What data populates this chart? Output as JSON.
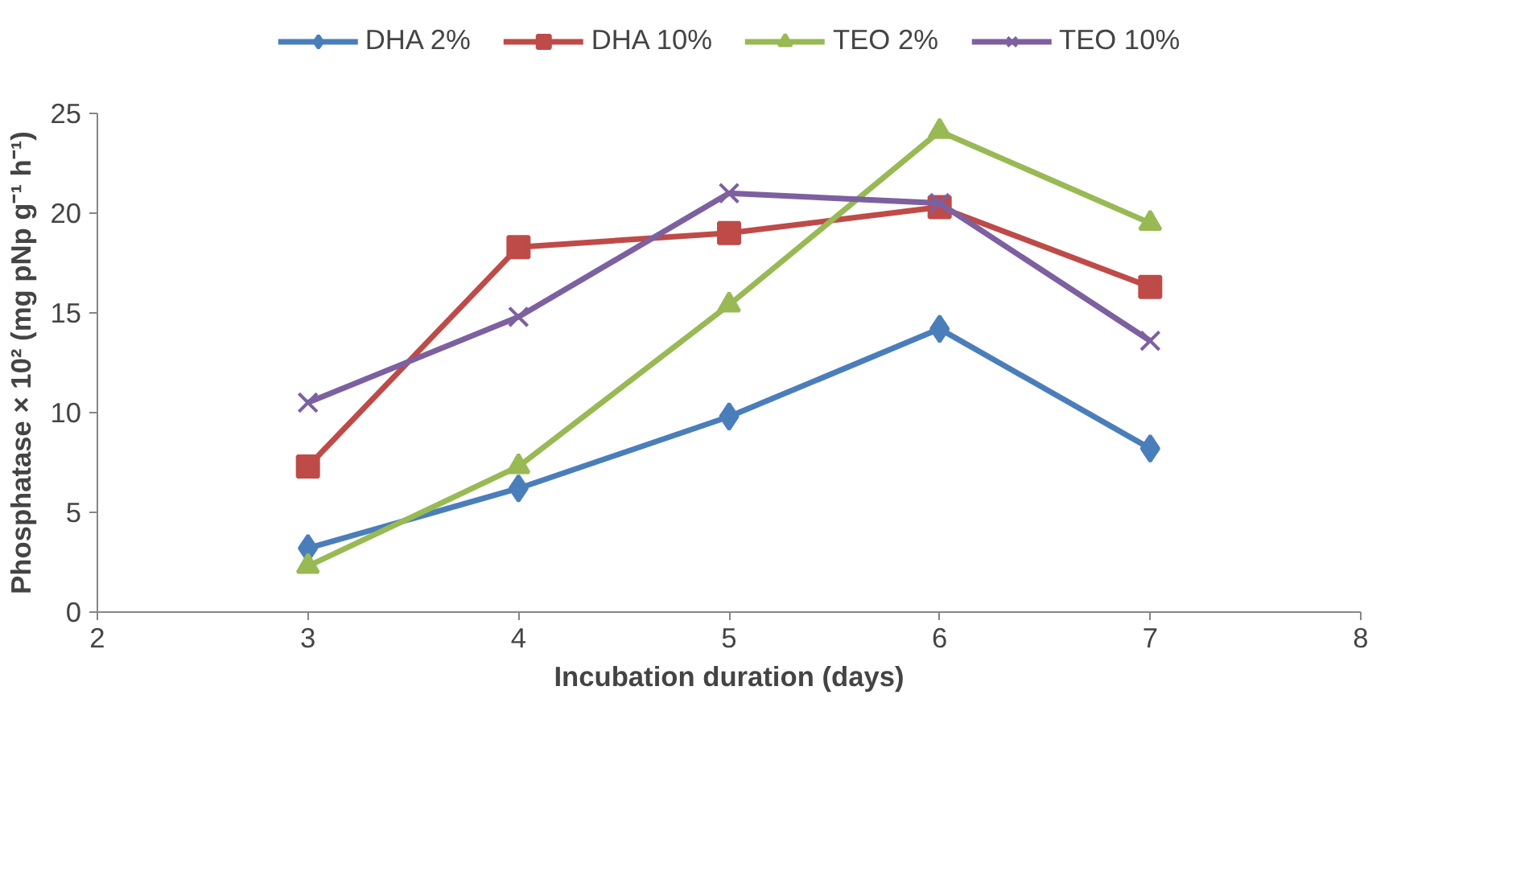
{
  "chart_data": {
    "type": "line",
    "xlabel": "Incubation duration (days)",
    "ylabel": "Phosphatase × 10² (mg pNp g⁻¹ h⁻¹)",
    "x": [
      3,
      4,
      5,
      6,
      7
    ],
    "xlim": [
      2,
      8
    ],
    "xticks": [
      2,
      3,
      4,
      5,
      6,
      7,
      8
    ],
    "ylim": [
      0,
      25
    ],
    "yticks": [
      0,
      5,
      10,
      15,
      20,
      25
    ],
    "grid": false,
    "legend": "top",
    "line_style": "solid",
    "series": [
      {
        "name": "DHA 2%",
        "color": "#4a7ebb",
        "marker": "diamond",
        "values": [
          3.2,
          6.2,
          9.8,
          14.2,
          8.2
        ]
      },
      {
        "name": "DHA 10%",
        "color": "#be4b48",
        "marker": "square",
        "values": [
          7.3,
          18.3,
          19.0,
          20.3,
          16.3
        ]
      },
      {
        "name": "TEO 2%",
        "color": "#98b954",
        "marker": "triangle",
        "values": [
          2.3,
          7.3,
          15.4,
          24.1,
          19.5
        ]
      },
      {
        "name": "TEO 10%",
        "color": "#7d60a0",
        "marker": "x",
        "values": [
          10.5,
          14.8,
          21.0,
          20.5,
          13.6
        ]
      }
    ]
  }
}
